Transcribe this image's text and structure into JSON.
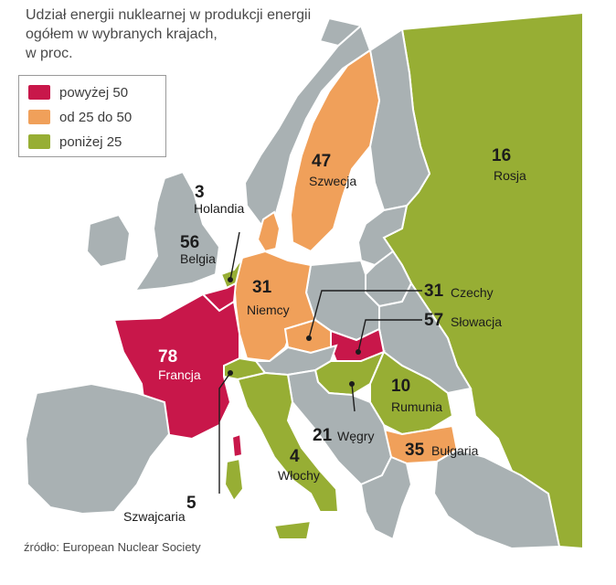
{
  "title_lines": [
    "Udział energii nuklearnej w produkcji energii",
    "ogółem w wybranych krajach,",
    "w proc."
  ],
  "legend": [
    {
      "label": "powyżej 50",
      "color": "#c8174a"
    },
    {
      "label": "od 25 do 50",
      "color": "#f0a05a"
    },
    {
      "label": "poniżej 25",
      "color": "#97ae34"
    }
  ],
  "countries": {
    "rosja": {
      "value": "16",
      "name": "Rosja"
    },
    "szwecja": {
      "value": "47",
      "name": "Szwecja"
    },
    "holandia": {
      "value": "3",
      "name": "Holandia"
    },
    "belgia": {
      "value": "56",
      "name": "Belgia"
    },
    "niemcy": {
      "value": "31",
      "name": "Niemcy"
    },
    "czechy": {
      "value": "31",
      "name": "Czechy"
    },
    "slowacja": {
      "value": "57",
      "name": "Słowacja"
    },
    "francja": {
      "value": "78",
      "name": "Francja"
    },
    "rumunia": {
      "value": "10",
      "name": "Rumunia"
    },
    "wegry": {
      "value": "21",
      "name": "Węgry"
    },
    "bulgaria": {
      "value": "35",
      "name": "Bułgaria"
    },
    "wlochy": {
      "value": "4",
      "name": "Włochy"
    },
    "szwajcaria": {
      "value": "5",
      "name": "Szwajcaria"
    }
  },
  "source": "źródło: European Nuclear Society",
  "colors": {
    "sea": "#ffffff",
    "land_gray": "#a9b1b3",
    "border": "#ffffff"
  }
}
